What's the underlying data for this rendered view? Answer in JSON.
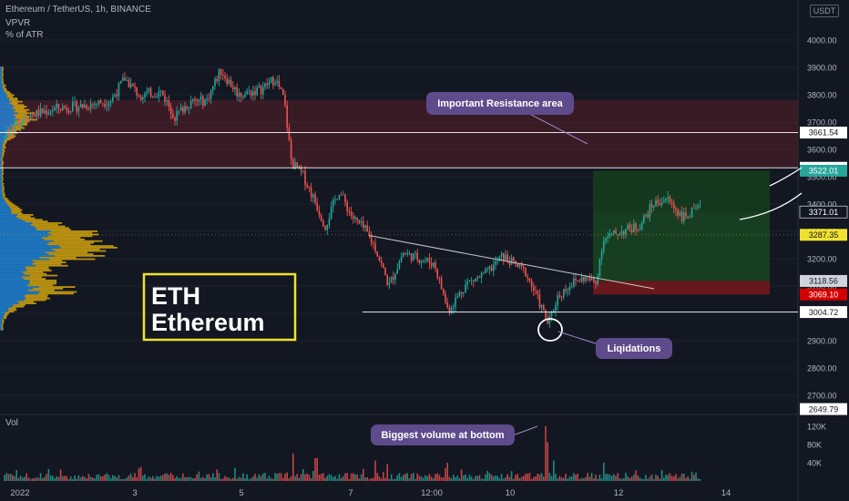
{
  "header": {
    "title": "Ethereum / TetherUS, 1h, BINANCE",
    "indicator_1": "VPVR",
    "indicator_2": "% of ATR",
    "currency_badge": "USDT"
  },
  "chart_data": {
    "type": "candlestick",
    "symbol": "ETH/USDT",
    "timeframe": "1h",
    "exchange": "BINANCE",
    "ylim": [
      2640,
      4080
    ],
    "y_ticks": [
      2700,
      2800,
      2900,
      3000,
      3100,
      3200,
      3300,
      3400,
      3500,
      3600,
      3700,
      3800,
      3900,
      4000
    ],
    "x_ticks": [
      "2022",
      "3",
      "5",
      "7",
      "12:00",
      "10",
      "12",
      "14"
    ],
    "price_labels": [
      {
        "value": "3661.54",
        "price": 3661.54,
        "style": "plain"
      },
      {
        "value": "3532.60",
        "price": 3532.6,
        "style": "plain"
      },
      {
        "value": "3522.01",
        "price": 3522.01,
        "style": "green"
      },
      {
        "value": "3371.01",
        "price": 3371.01,
        "style": "current"
      },
      {
        "value": "3287.35",
        "price": 3287.35,
        "style": "yellow"
      },
      {
        "value": "3118.56",
        "price": 3118.56,
        "style": "gray"
      },
      {
        "value": "3069.10",
        "price": 3069.1,
        "style": "red"
      },
      {
        "value": "3004.72",
        "price": 3004.72,
        "style": "plain"
      },
      {
        "value": "2649.79",
        "price": 2649.79,
        "style": "plain"
      }
    ],
    "resistance_zone": {
      "low": 3532.6,
      "high": 3780
    },
    "horizontal_levels": [
      3661.54,
      3532.6,
      3004.72
    ],
    "long_position": {
      "entry": 3118.56,
      "stop": 3069.1,
      "target": 3522.01
    },
    "trendline": {
      "from": 3285,
      "to": 3090
    },
    "path_anchors": [
      {
        "t": 0,
        "p": 3640
      },
      {
        "t": 25,
        "p": 3720
      },
      {
        "t": 60,
        "p": 3750
      },
      {
        "t": 90,
        "p": 3760
      },
      {
        "t": 120,
        "p": 3780
      },
      {
        "t": 135,
        "p": 3860
      },
      {
        "t": 150,
        "p": 3800
      },
      {
        "t": 175,
        "p": 3810
      },
      {
        "t": 190,
        "p": 3720
      },
      {
        "t": 205,
        "p": 3770
      },
      {
        "t": 225,
        "p": 3780
      },
      {
        "t": 240,
        "p": 3890
      },
      {
        "t": 260,
        "p": 3800
      },
      {
        "t": 285,
        "p": 3820
      },
      {
        "t": 300,
        "p": 3860
      },
      {
        "t": 310,
        "p": 3780
      },
      {
        "t": 318,
        "p": 3550
      },
      {
        "t": 330,
        "p": 3510
      },
      {
        "t": 345,
        "p": 3400
      },
      {
        "t": 355,
        "p": 3320
      },
      {
        "t": 370,
        "p": 3450
      },
      {
        "t": 385,
        "p": 3350
      },
      {
        "t": 400,
        "p": 3300
      },
      {
        "t": 410,
        "p": 3240
      },
      {
        "t": 425,
        "p": 3100
      },
      {
        "t": 440,
        "p": 3220
      },
      {
        "t": 460,
        "p": 3200
      },
      {
        "t": 475,
        "p": 3180
      },
      {
        "t": 490,
        "p": 3010
      },
      {
        "t": 510,
        "p": 3110
      },
      {
        "t": 530,
        "p": 3140
      },
      {
        "t": 550,
        "p": 3210
      },
      {
        "t": 575,
        "p": 3150
      },
      {
        "t": 590,
        "p": 3040
      },
      {
        "t": 600,
        "p": 2960
      },
      {
        "t": 610,
        "p": 3060
      },
      {
        "t": 625,
        "p": 3110
      },
      {
        "t": 640,
        "p": 3130
      },
      {
        "t": 652,
        "p": 3110
      },
      {
        "t": 660,
        "p": 3270
      },
      {
        "t": 680,
        "p": 3300
      },
      {
        "t": 700,
        "p": 3320
      },
      {
        "t": 715,
        "p": 3400
      },
      {
        "t": 730,
        "p": 3420
      },
      {
        "t": 748,
        "p": 3350
      },
      {
        "t": 765,
        "p": 3380
      }
    ],
    "volume_panel": {
      "label": "Vol",
      "y_ticks": [
        "40K",
        "80K",
        "120K"
      ],
      "y_values": [
        40,
        80,
        120
      ],
      "ymax": 140,
      "spikes": [
        {
          "t": 320,
          "v": 60
        },
        {
          "t": 345,
          "v": 50
        },
        {
          "t": 410,
          "v": 45
        },
        {
          "t": 490,
          "v": 40
        },
        {
          "t": 596,
          "v": 120
        },
        {
          "t": 600,
          "v": 85
        },
        {
          "t": 605,
          "v": 45
        },
        {
          "t": 660,
          "v": 40
        }
      ]
    }
  },
  "annotations": {
    "resistance": "Important Resistance area",
    "liquidations": "Liqidations",
    "volume_note": "Biggest volume at bottom",
    "ticker": "ETH",
    "name": "Ethereum"
  },
  "colors": {
    "background": "#131722",
    "bull": "#26a69a",
    "bear": "#ef5350",
    "resistance_zone": "#5a1f2a",
    "callout": "#5e4b8b",
    "profile_blue": "#2196f3",
    "profile_yellow": "#f0b90b",
    "eth_box": "#f0e130"
  }
}
